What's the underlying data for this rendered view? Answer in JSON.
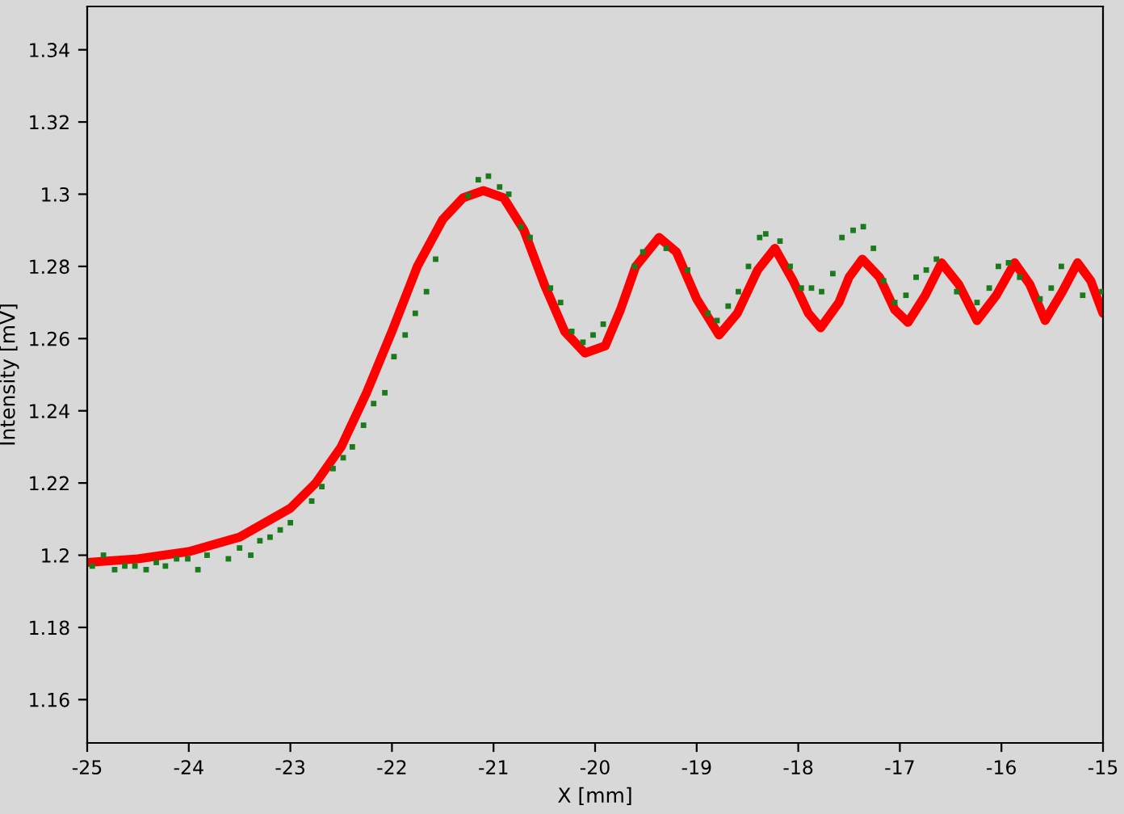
{
  "chart_data": {
    "type": "line",
    "xlabel": "X [mm]",
    "ylabel": "Intensity [mV]",
    "xlim": [
      -25,
      -15
    ],
    "xticks": [
      -25,
      -24,
      -23,
      -22,
      -21,
      -20,
      -19,
      -18,
      -17,
      -16,
      -15
    ],
    "ylim": [
      1.148,
      1.352
    ],
    "yticks": [
      1.16,
      1.18,
      1.2,
      1.22,
      1.24,
      1.26,
      1.28,
      1.3,
      1.32,
      1.34
    ],
    "grid": false,
    "legend": false,
    "series": [
      {
        "color": "#ff0000",
        "line_style": "solid",
        "marker": "none",
        "x": [
          -25,
          -24.5,
          -24,
          -23.5,
          -23,
          -22.75,
          -22.5,
          -22.25,
          -22,
          -21.75,
          -21.5,
          -21.3,
          -21.1,
          -20.9,
          -20.7,
          -20.5,
          -20.3,
          -20.1,
          -19.9,
          -19.75,
          -19.6,
          -19.37,
          -19.2,
          -19.0,
          -18.78,
          -18.6,
          -18.4,
          -18.23,
          -18.05,
          -17.9,
          -17.78,
          -17.6,
          -17.5,
          -17.37,
          -17.2,
          -17.05,
          -16.92,
          -16.75,
          -16.59,
          -16.42,
          -16.24,
          -16.05,
          -15.87,
          -15.72,
          -15.57,
          -15.4,
          -15.25,
          -15.12,
          -15.0
        ],
        "values": [
          1.198,
          1.199,
          1.201,
          1.205,
          1.213,
          1.22,
          1.23,
          1.245,
          1.262,
          1.28,
          1.293,
          1.299,
          1.301,
          1.299,
          1.29,
          1.275,
          1.262,
          1.256,
          1.258,
          1.268,
          1.28,
          1.288,
          1.284,
          1.271,
          1.261,
          1.267,
          1.279,
          1.285,
          1.276,
          1.267,
          1.263,
          1.27,
          1.277,
          1.282,
          1.277,
          1.268,
          1.2645,
          1.272,
          1.281,
          1.275,
          1.265,
          1.272,
          1.281,
          1.275,
          1.265,
          1.273,
          1.281,
          1.276,
          1.267
        ]
      },
      {
        "type": "scatter",
        "color": "#1b7a1b",
        "marker": "square",
        "x": [
          -24.95,
          -24.84,
          -24.73,
          -24.63,
          -24.53,
          -24.42,
          -24.32,
          -24.23,
          -24.12,
          -24.01,
          -23.91,
          -23.82,
          -23.61,
          -23.5,
          -23.39,
          -23.3,
          -23.2,
          -23.1,
          -23.0,
          -22.79,
          -22.69,
          -22.58,
          -22.48,
          -22.39,
          -22.28,
          -22.18,
          -22.07,
          -21.98,
          -21.87,
          -21.77,
          -21.66,
          -21.57,
          -21.25,
          -21.15,
          -21.05,
          -20.94,
          -20.85,
          -20.73,
          -20.64,
          -20.44,
          -20.34,
          -20.23,
          -20.12,
          -20.02,
          -19.92,
          -19.61,
          -19.53,
          -19.3,
          -19.09,
          -18.89,
          -18.8,
          -18.69,
          -18.59,
          -18.49,
          -18.38,
          -18.32,
          -18.18,
          -18.08,
          -17.97,
          -17.87,
          -17.77,
          -17.66,
          -17.57,
          -17.46,
          -17.36,
          -17.26,
          -17.16,
          -17.05,
          -16.94,
          -16.84,
          -16.74,
          -16.64,
          -16.44,
          -16.24,
          -16.12,
          -16.03,
          -15.93,
          -15.82,
          -15.62,
          -15.51,
          -15.41,
          -15.2,
          -15.01
        ],
        "values": [
          1.197,
          1.2,
          1.196,
          1.197,
          1.197,
          1.196,
          1.198,
          1.197,
          1.199,
          1.199,
          1.196,
          1.2,
          1.199,
          1.202,
          1.2,
          1.204,
          1.205,
          1.207,
          1.209,
          1.215,
          1.219,
          1.224,
          1.227,
          1.23,
          1.236,
          1.242,
          1.245,
          1.255,
          1.261,
          1.267,
          1.273,
          1.282,
          1.2996,
          1.304,
          1.305,
          1.302,
          1.3,
          1.291,
          1.288,
          1.274,
          1.27,
          1.262,
          1.259,
          1.261,
          1.264,
          1.28,
          1.284,
          1.285,
          1.279,
          1.267,
          1.265,
          1.269,
          1.273,
          1.28,
          1.288,
          1.289,
          1.287,
          1.28,
          1.274,
          1.274,
          1.273,
          1.278,
          1.288,
          1.29,
          1.291,
          1.285,
          1.276,
          1.27,
          1.272,
          1.277,
          1.279,
          1.282,
          1.273,
          1.27,
          1.274,
          1.28,
          1.281,
          1.277,
          1.271,
          1.274,
          1.28,
          1.272,
          1.273
        ]
      }
    ]
  }
}
